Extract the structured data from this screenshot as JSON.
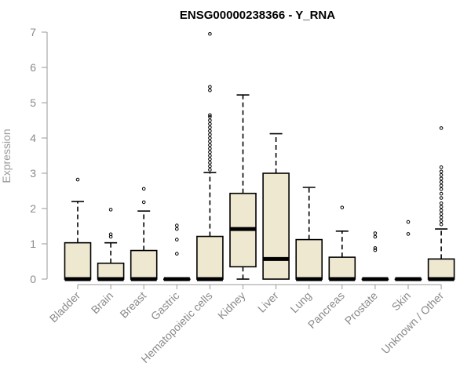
{
  "chart_data": {
    "type": "boxplot",
    "title": "ENSG00000238366 - Y_RNA",
    "ylabel": "Expression",
    "xlabel": "",
    "ylim": [
      0,
      7
    ],
    "yticks": [
      0,
      1,
      2,
      3,
      4,
      5,
      6,
      7
    ],
    "box_color": "#EEE8D0",
    "categories": [
      "Bladder",
      "Brain",
      "Breast",
      "Gastric",
      "Hematopoietic cells",
      "Kidney",
      "Liver",
      "Lung",
      "Pancreas",
      "Prostate",
      "Skin",
      "Unknown / Other"
    ],
    "boxes": [
      {
        "category": "Bladder",
        "q1": 0,
        "median": 0,
        "q3": 1.03,
        "whisker_low": 0,
        "whisker_high": 2.2,
        "outliers": [
          2.82
        ]
      },
      {
        "category": "Brain",
        "q1": 0,
        "median": 0,
        "q3": 0.45,
        "whisker_low": 0,
        "whisker_high": 1.03,
        "outliers": [
          1.2,
          1.27,
          1.97
        ]
      },
      {
        "category": "Breast",
        "q1": 0,
        "median": 0,
        "q3": 0.81,
        "whisker_low": 0,
        "whisker_high": 1.93,
        "outliers": [
          2.18,
          2.56
        ]
      },
      {
        "category": "Gastric",
        "q1": 0,
        "median": 0,
        "q3": 0,
        "whisker_low": 0,
        "whisker_high": 0,
        "outliers": [
          0.72,
          1.12,
          1.42,
          1.52
        ]
      },
      {
        "category": "Hematopoietic cells",
        "q1": 0,
        "median": 0,
        "q3": 1.21,
        "whisker_low": 0,
        "whisker_high": 3.02,
        "outliers": [
          3.1,
          3.2,
          3.3,
          3.4,
          3.5,
          3.6,
          3.7,
          3.8,
          3.9,
          4.0,
          4.1,
          4.2,
          4.3,
          4.4,
          4.5,
          4.6,
          4.65,
          5.35,
          5.45,
          6.95
        ]
      },
      {
        "category": "Kidney",
        "q1": 0.35,
        "median": 1.42,
        "q3": 2.43,
        "whisker_low": 0,
        "whisker_high": 5.22,
        "outliers": []
      },
      {
        "category": "Liver",
        "q1": 0,
        "median": 0.57,
        "q3": 3.0,
        "whisker_low": 0,
        "whisker_high": 4.12,
        "outliers": []
      },
      {
        "category": "Lung",
        "q1": 0,
        "median": 0,
        "q3": 1.12,
        "whisker_low": 0,
        "whisker_high": 2.6,
        "outliers": []
      },
      {
        "category": "Pancreas",
        "q1": 0,
        "median": 0,
        "q3": 0.62,
        "whisker_low": 0,
        "whisker_high": 1.36,
        "outliers": [
          2.03
        ]
      },
      {
        "category": "Prostate",
        "q1": 0,
        "median": 0,
        "q3": 0,
        "whisker_low": 0,
        "whisker_high": 0,
        "outliers": [
          0.82,
          0.88,
          1.2,
          1.3
        ]
      },
      {
        "category": "Skin",
        "q1": 0,
        "median": 0,
        "q3": 0,
        "whisker_low": 0,
        "whisker_high": 0,
        "outliers": [
          1.28,
          1.62
        ]
      },
      {
        "category": "Unknown / Other",
        "q1": 0,
        "median": 0,
        "q3": 0.57,
        "whisker_low": 0,
        "whisker_high": 1.42,
        "outliers": [
          1.55,
          1.65,
          1.75,
          1.85,
          1.95,
          2.05,
          2.15,
          2.3,
          2.42,
          2.55,
          2.65,
          2.75,
          2.85,
          2.95,
          3.05,
          3.17,
          4.28
        ]
      }
    ]
  }
}
